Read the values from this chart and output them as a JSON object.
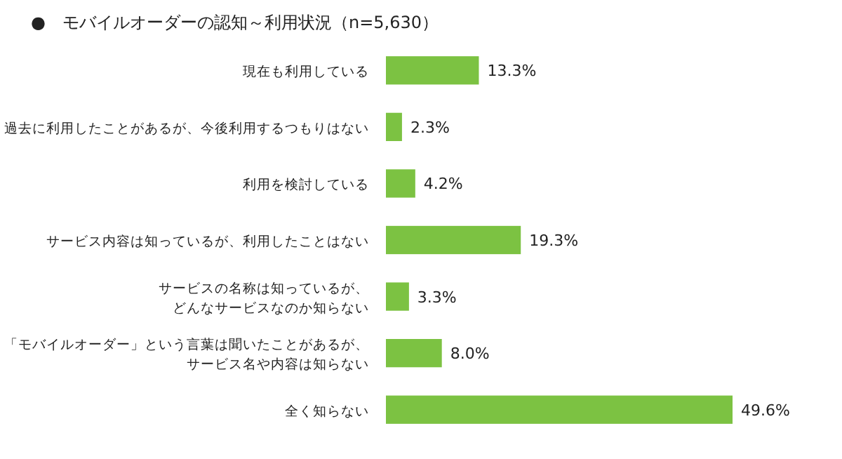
{
  "chart_data": {
    "type": "bar",
    "orientation": "horizontal",
    "title": "●　モバイルオーダーの認知～利用状況（n=5,630）",
    "categories": [
      "現在も利用している",
      "過去に利用したことがあるが、今後利用するつもりはない",
      "利用を検討している",
      "サービス内容は知っているが、利用したことはない",
      "サービスの名称は知っているが、どんなサービスなのか知らない",
      "「モバイルオーダー」という言葉は聞いたことがあるが、サービス名や内容は知らない",
      "全く知らない"
    ],
    "values": [
      13.3,
      2.3,
      4.2,
      19.3,
      3.3,
      8.0,
      49.6
    ],
    "value_labels": [
      "13.3%",
      "2.3%",
      "4.2%",
      "19.3%",
      "3.3%",
      "8.0%",
      "49.6%"
    ],
    "color": "#7cc242"
  }
}
